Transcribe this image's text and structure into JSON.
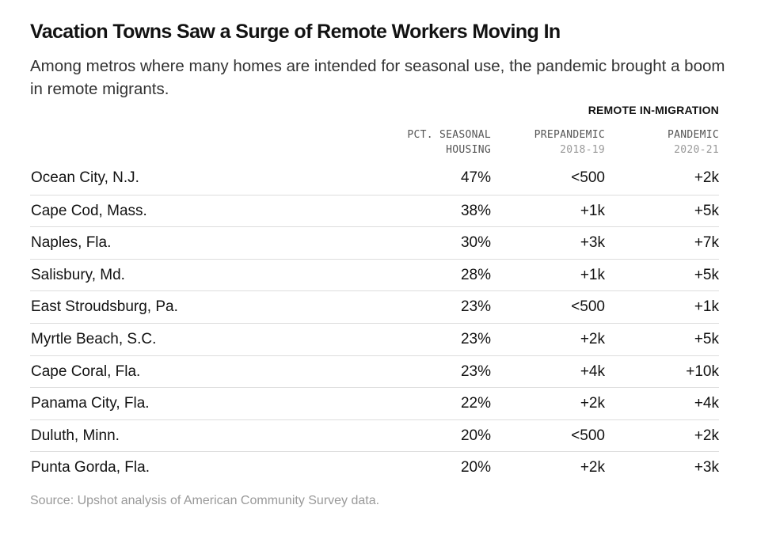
{
  "title": "Vacation Towns Saw a Surge of Remote Workers Moving In",
  "subtitle": "Among metros where many homes are intended for seasonal use, the pandemic brought a boom in remote migrants.",
  "group_header": "REMOTE IN-MIGRATION",
  "columns": {
    "pct": {
      "line1": "PCT. SEASONAL",
      "line2": "HOUSING"
    },
    "pre": {
      "line1": "PREPANDEMIC",
      "line2": "2018-19"
    },
    "pan": {
      "line1": "PANDEMIC",
      "line2": "2020-21"
    }
  },
  "source": "Source: Upshot analysis of American Community Survey data.",
  "chart_data": {
    "type": "table",
    "title": "Vacation Towns Saw a Surge of Remote Workers Moving In",
    "columns": [
      "",
      "PCT. SEASONAL HOUSING",
      "PREPANDEMIC 2018-19",
      "PANDEMIC 2020-21"
    ],
    "rows": [
      {
        "metro": "Ocean City, N.J.",
        "pct": "47%",
        "pre": "<500",
        "pan": "+2k"
      },
      {
        "metro": "Cape Cod, Mass.",
        "pct": "38%",
        "pre": "+1k",
        "pan": "+5k"
      },
      {
        "metro": "Naples, Fla.",
        "pct": "30%",
        "pre": "+3k",
        "pan": "+7k"
      },
      {
        "metro": "Salisbury, Md.",
        "pct": "28%",
        "pre": "+1k",
        "pan": "+5k"
      },
      {
        "metro": "East Stroudsburg, Pa.",
        "pct": "23%",
        "pre": "<500",
        "pan": "+1k"
      },
      {
        "metro": "Myrtle Beach, S.C.",
        "pct": "23%",
        "pre": "+2k",
        "pan": "+5k"
      },
      {
        "metro": "Cape Coral, Fla.",
        "pct": "23%",
        "pre": "+4k",
        "pan": "+10k"
      },
      {
        "metro": "Panama City, Fla.",
        "pct": "22%",
        "pre": "+2k",
        "pan": "+4k"
      },
      {
        "metro": "Duluth, Minn.",
        "pct": "20%",
        "pre": "<500",
        "pan": "+2k"
      },
      {
        "metro": "Punta Gorda, Fla.",
        "pct": "20%",
        "pre": "+2k",
        "pan": "+3k"
      }
    ]
  }
}
